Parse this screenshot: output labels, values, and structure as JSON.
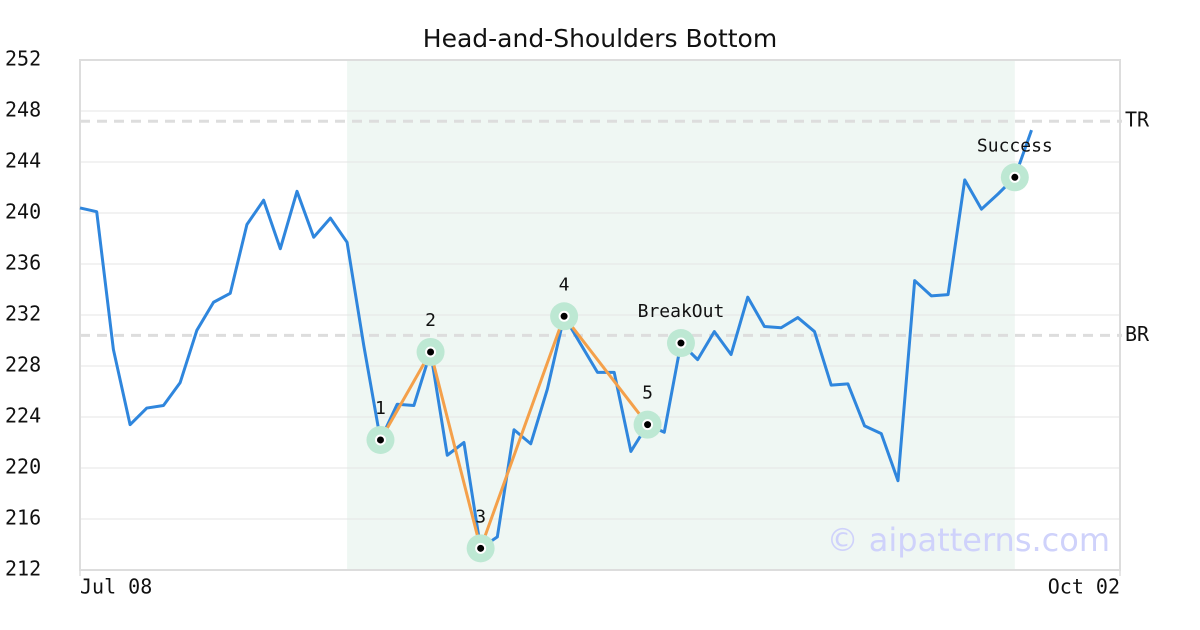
{
  "chart_data": {
    "type": "line",
    "title": "Head-and-Shoulders Bottom",
    "x": [
      0,
      1,
      2,
      3,
      4,
      5,
      6,
      7,
      8,
      9,
      10,
      11,
      12,
      13,
      14,
      15,
      16,
      17,
      18,
      19,
      20,
      21,
      22,
      23,
      24,
      25,
      26,
      27,
      28,
      29,
      30,
      31,
      32,
      33,
      34,
      35,
      36,
      37,
      38,
      39,
      40,
      41,
      42,
      43,
      44,
      45,
      46,
      47,
      48,
      49,
      50,
      51,
      52,
      53,
      54,
      55,
      56,
      57
    ],
    "series": [
      {
        "color": "#2f86dd",
        "values": [
          240.4,
          240.1,
          229.3,
          223.4,
          224.7,
          224.9,
          226.7,
          230.8,
          233.0,
          233.7,
          239.1,
          241.0,
          237.2,
          241.7,
          238.1,
          239.6,
          237.7,
          229.6,
          222.2,
          225.0,
          224.9,
          229.1,
          221.0,
          222.0,
          213.7,
          214.6,
          223.0,
          221.9,
          226.2,
          231.9,
          229.7,
          227.5,
          227.5,
          221.3,
          223.4,
          222.8,
          229.8,
          228.5,
          230.7,
          228.9,
          233.4,
          231.1,
          231.0,
          231.8,
          230.7,
          226.5,
          226.6,
          223.3,
          222.7,
          219.0,
          234.7,
          233.5,
          233.6,
          242.6,
          240.3,
          241.5,
          242.8,
          246.5
        ]
      }
    ],
    "xlim": [
      0,
      62.3
    ],
    "xticks": [
      {
        "value": 0,
        "label": "Jul 08"
      },
      {
        "value": 62.3,
        "label": "Oct 02"
      }
    ],
    "ylim": [
      212,
      252
    ],
    "yticks": [
      212,
      216,
      220,
      224,
      228,
      232,
      236,
      240,
      244,
      248,
      252
    ],
    "grid": true,
    "shade": [
      16,
      56
    ],
    "pattern": {
      "color": "#f4a04a",
      "points": [
        {
          "label": "1",
          "x": 18,
          "y": 222.2
        },
        {
          "label": "2",
          "x": 21,
          "y": 229.1
        },
        {
          "label": "3",
          "x": 24,
          "y": 213.7
        },
        {
          "label": "4",
          "x": 29,
          "y": 231.9
        },
        {
          "label": "5",
          "x": 34,
          "y": 223.4
        }
      ]
    },
    "markers": [
      {
        "label": "BreakOut",
        "x": 36,
        "y": 229.8
      },
      {
        "label": "Success",
        "x": 56,
        "y": 242.8
      }
    ],
    "levels": [
      {
        "label": "TR",
        "value": 247.2
      },
      {
        "label": "BR",
        "value": 230.4
      }
    ],
    "watermark": "© aipatterns.com"
  }
}
